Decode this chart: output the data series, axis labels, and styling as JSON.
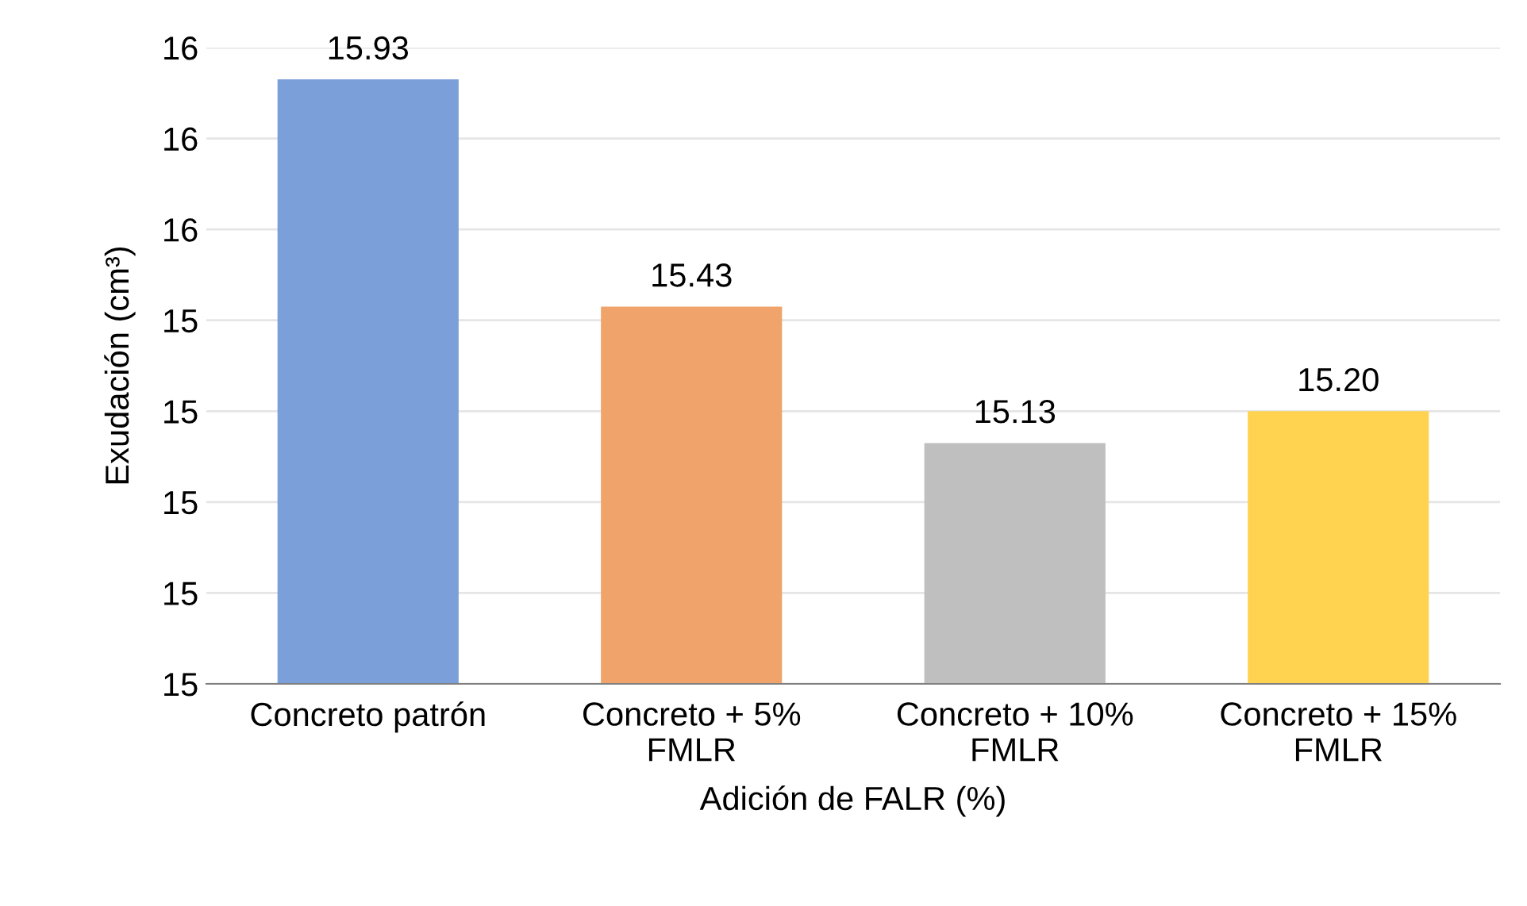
{
  "chart_data": {
    "type": "bar",
    "xlabel": "Adición de FALR (%)",
    "ylabel": "Exudación (cm³)",
    "categories": [
      "Concreto patrón",
      "Concreto + 5%\nFMLR",
      "Concreto + 10%\nFMLR",
      "Concreto + 15%\nFMLR"
    ],
    "values": [
      15.93,
      15.43,
      15.13,
      15.2
    ],
    "value_labels": [
      "15.93",
      "15.43",
      "15.13",
      "15.20"
    ],
    "colors": [
      "#7b9fd9",
      "#f0a46c",
      "#bfbfbf",
      "#ffd34f"
    ],
    "ylim": [
      14.6,
      16.0
    ],
    "yticks": [
      {
        "value": 14.6,
        "label": "15"
      },
      {
        "value": 14.8,
        "label": "15"
      },
      {
        "value": 15.0,
        "label": "15"
      },
      {
        "value": 15.2,
        "label": "15"
      },
      {
        "value": 15.4,
        "label": "15"
      },
      {
        "value": 15.6,
        "label": "16"
      },
      {
        "value": 15.8,
        "label": "16"
      },
      {
        "value": 16.0,
        "label": "16"
      }
    ],
    "grid": "y",
    "legend": false
  }
}
